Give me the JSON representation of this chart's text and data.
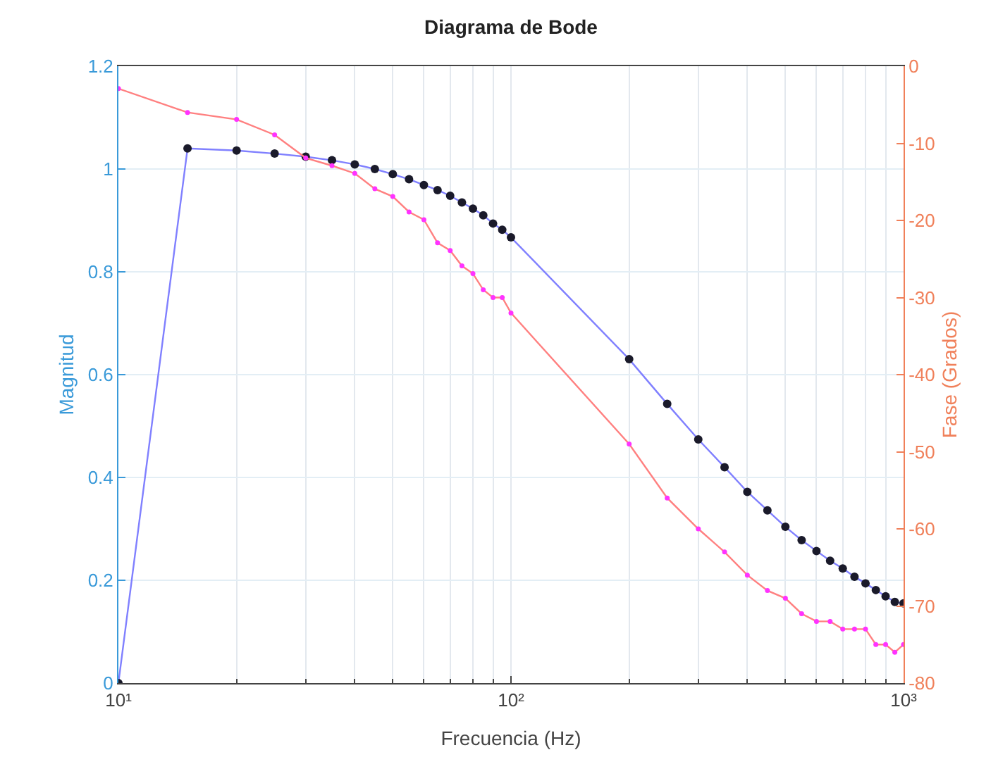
{
  "chart_data": {
    "type": "line",
    "title": "Diagrama de Bode",
    "xlabel": "Frecuencia (Hz)",
    "ylabel": "Magnitud",
    "y2label": "Fase (Grados)",
    "x": [
      10,
      15,
      20,
      25,
      30,
      35,
      40,
      45,
      50,
      55,
      60,
      65,
      70,
      75,
      80,
      85,
      90,
      95,
      100,
      200,
      250,
      300,
      350,
      400,
      450,
      500,
      550,
      600,
      650,
      700,
      750,
      800,
      850,
      900,
      950,
      1000
    ],
    "series": [
      {
        "color": "#8080ff",
        "colors": [
          "#1a1a2a",
          "#1a1a2a",
          "#1a1a2a",
          "#1a1a2a",
          "#1a1a2a",
          "#1a1a2a",
          "#1a1a2a",
          "#1a1a2a",
          "#1a1a2a",
          "#1a1a2a",
          "#1a1a2a",
          "#1a1a2a",
          "#1a1a2a",
          "#1a1a2a",
          "#1a1a2a",
          "#1a1a2a",
          "#1a1a2a",
          "#1a1a2a",
          "#1a1a2a",
          "#1a1a2a",
          "#1a1a2a",
          "#1a1a2a",
          "#1a1a2a",
          "#1a1a2a",
          "#1a1a2a",
          "#1a1a2a",
          "#1a1a2a",
          "#1a1a2a",
          "#1a1a2a",
          "#1a1a2a",
          "#1a1a2a",
          "#1a1a2a",
          "#1a1a2a",
          "#1a1a2a",
          "#1a1a2a",
          "#1a1a2a"
        ],
        "values": [
          0,
          1.04,
          1.036,
          1.03,
          1.024,
          1.017,
          1.009,
          1.0,
          0.99,
          0.98,
          0.969,
          0.959,
          0.948,
          0.935,
          0.923,
          0.91,
          0.894,
          0.882,
          0.867,
          0.63,
          0.543,
          0.474,
          0.42,
          0.372,
          0.336,
          0.304,
          0.278,
          0.257,
          0.238,
          0.223,
          0.207,
          0.194,
          0.181,
          0.169,
          0.158,
          0.155
        ]
      },
      {
        "axis": "y2",
        "color": "#ff8080",
        "colors": [
          "#ff33ff",
          "#ff33ff",
          "#ff33ff",
          "#ff33ff",
          "#ff33ff",
          "#ff33ff",
          "#ff33ff",
          "#ff33ff",
          "#ff33ff",
          "#ff33ff",
          "#ff33ff",
          "#ff33ff",
          "#ff33ff",
          "#ff33ff",
          "#ff33ff",
          "#ff33ff",
          "#ff33ff",
          "#ff33ff",
          "#ff33ff",
          "#ff33ff",
          "#ff33ff",
          "#ff33ff",
          "#ff33ff",
          "#ff33ff",
          "#ff33ff",
          "#ff33ff",
          "#ff33ff",
          "#ff33ff",
          "#ff33ff",
          "#ff33ff",
          "#ff33ff",
          "#ff33ff",
          "#ff33ff",
          "#ff33ff",
          "#ff33ff",
          "#ff33ff"
        ],
        "values": [
          -2.9,
          -6.0,
          -6.9,
          -8.9,
          -11.9,
          -12.9,
          -13.9,
          -15.9,
          -16.9,
          -18.9,
          -19.9,
          -22.9,
          -23.9,
          -25.9,
          -26.9,
          -29,
          -30,
          -30,
          -32,
          -49,
          -56,
          -60,
          -63,
          -66,
          -68,
          -69,
          -71,
          -72,
          -72,
          -73,
          -73,
          -73,
          -75,
          -75,
          -76,
          -75
        ]
      }
    ],
    "log": "x",
    "xlim": [
      10,
      1000
    ],
    "xticks": [
      {
        "value": 10,
        "label": "10¹"
      },
      {
        "value": 100,
        "label": "10²"
      },
      {
        "value": 1000,
        "label": "10³"
      }
    ],
    "ylim": [
      0,
      1.2
    ],
    "yticks": [
      0,
      0.2,
      0.4,
      0.6,
      0.8,
      1,
      1.2
    ],
    "y2lim": [
      -80,
      0
    ],
    "y2ticks": [
      -80,
      -70,
      -60,
      -50,
      -40,
      -30,
      -20,
      -10,
      0
    ],
    "grid": true,
    "marker": "circle",
    "line_style": "solid"
  }
}
